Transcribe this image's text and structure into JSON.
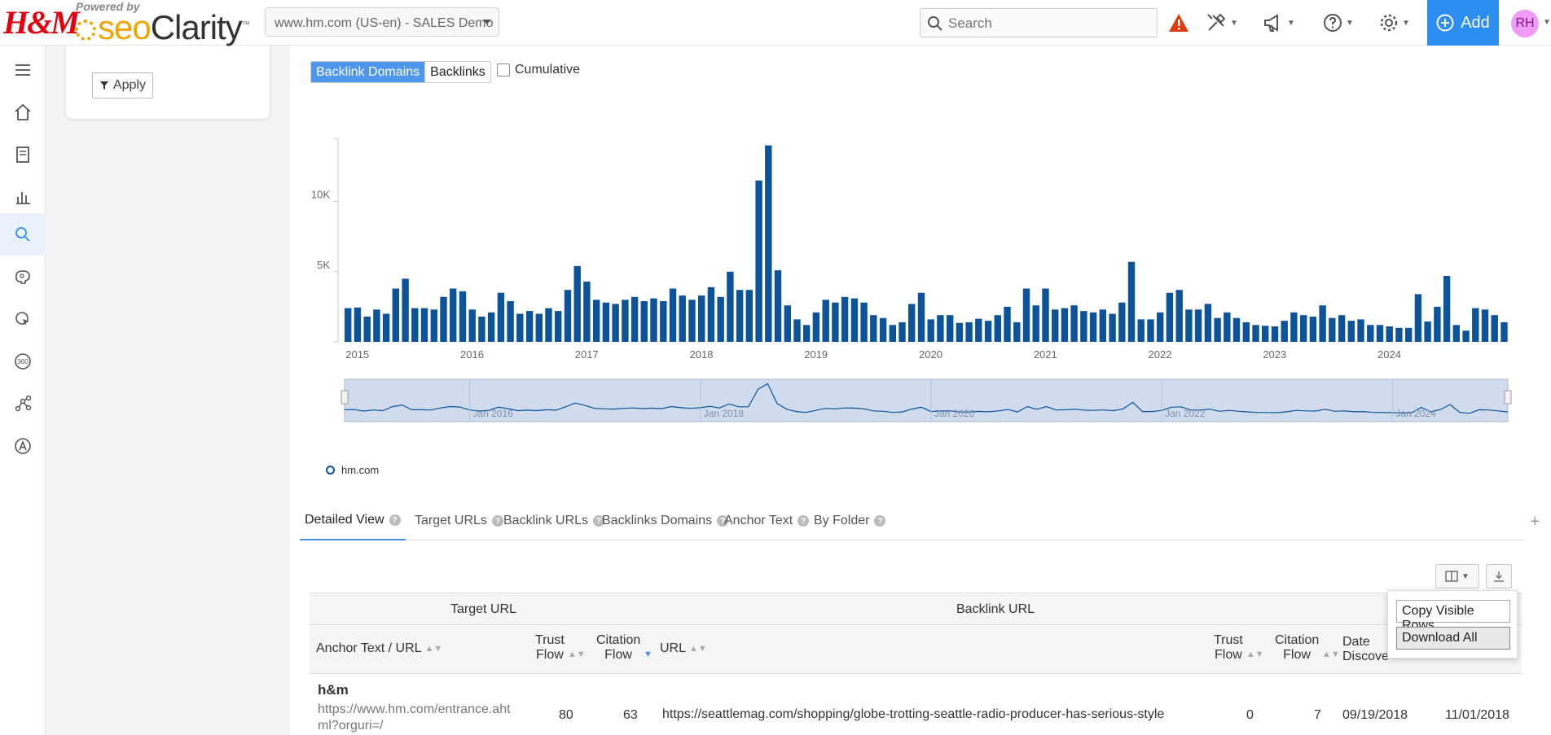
{
  "brand": {
    "hm": "H&M",
    "powered_by": "Powered by",
    "seo": "seo",
    "clarity": "Clarity",
    "tm": "™"
  },
  "site_selector": {
    "value": "www.hm.com (US-en) - SALES Demo"
  },
  "search": {
    "placeholder": "Search"
  },
  "header": {
    "add_label": "Add",
    "avatar_initials": "RH",
    "alert_color": "#e03c10"
  },
  "sidebar": {
    "items": [
      {
        "icon": "menu-icon"
      },
      {
        "icon": "home-icon"
      },
      {
        "icon": "document-icon"
      },
      {
        "icon": "bar-chart-icon"
      },
      {
        "icon": "search-icon",
        "active": true
      },
      {
        "icon": "brain-icon"
      },
      {
        "icon": "cursor-search-icon"
      },
      {
        "icon": "360-icon"
      },
      {
        "icon": "network-icon"
      },
      {
        "icon": "a-circle-icon"
      }
    ]
  },
  "filter_card": {
    "apply_label": "Apply"
  },
  "view_toggle": {
    "options": [
      "Backlink Domains",
      "Backlinks"
    ],
    "selected": "Backlink Domains"
  },
  "cumulative": {
    "label": "Cumulative",
    "checked": false
  },
  "chart_data": {
    "type": "bar",
    "series": [
      {
        "name": "hm.com",
        "color": "#0d5399"
      }
    ],
    "x_labels": [
      "2015",
      "2016",
      "2017",
      "2018",
      "2019",
      "2020",
      "2021",
      "2022",
      "2023",
      "2024"
    ],
    "y_ticks": [
      "5K",
      "10K"
    ],
    "ylim": [
      0,
      14500
    ],
    "values": [
      2400,
      2450,
      1800,
      2300,
      2000,
      3800,
      4500,
      2400,
      2400,
      2300,
      3200,
      3800,
      3600,
      2300,
      1800,
      2100,
      3500,
      2900,
      2000,
      2200,
      2000,
      2400,
      2200,
      3700,
      5400,
      4300,
      3000,
      2800,
      2700,
      3000,
      3200,
      2900,
      3100,
      2900,
      3800,
      3300,
      3000,
      3300,
      3900,
      3200,
      5000,
      3700,
      3700,
      11500,
      14000,
      5100,
      2600,
      1600,
      1200,
      2100,
      3000,
      2800,
      3200,
      3100,
      2800,
      1900,
      1700,
      1200,
      1400,
      2700,
      3500,
      1600,
      1900,
      1900,
      1350,
      1400,
      1650,
      1500,
      1900,
      2500,
      1400,
      3800,
      2600,
      3800,
      2300,
      2400,
      2600,
      2200,
      2100,
      2300,
      2000,
      2800,
      5700,
      1600,
      1600,
      2100,
      3500,
      3700,
      2300,
      2300,
      2700,
      1700,
      2100,
      1700,
      1400,
      1200,
      1150,
      1100,
      1500,
      2100,
      1900,
      1800,
      2600,
      1700,
      1900,
      1500,
      1600,
      1200,
      1200,
      1100,
      1000,
      1000,
      3400,
      1450,
      2500,
      4700,
      1200,
      800,
      2400,
      2300,
      1900,
      1400
    ],
    "navigator_labels": [
      "Jan 2016",
      "Jan 2018",
      "Jan 2020",
      "Jan 2022",
      "Jan 2024"
    ],
    "legend": "hm.com"
  },
  "tabs": [
    {
      "label": "Detailed View",
      "active": true
    },
    {
      "label": "Target URLs"
    },
    {
      "label": "Backlink URLs"
    },
    {
      "label": "Backlinks Domains"
    },
    {
      "label": "Anchor Text"
    },
    {
      "label": "By Folder"
    }
  ],
  "download_menu": {
    "options": [
      "Copy Visible Rows",
      "Download All"
    ],
    "selected": "Download All"
  },
  "table": {
    "group_headers": [
      "Target URL",
      "Backlink URL"
    ],
    "columns": [
      "Anchor Text / URL",
      "Trust Flow",
      "Citation Flow",
      "URL",
      "Trust Flow",
      "Citation Flow",
      "Date Discove"
    ],
    "rows": [
      {
        "anchor_text": "h&m",
        "target_url": "https://www.hm.com/entrance.ahtml?orguri=/",
        "target_trust_flow": "80",
        "target_citation_flow": "63",
        "backlink_url": "https://seattlemag.com/shopping/globe-trotting-seattle-radio-producer-has-serious-style",
        "backlink_trust_flow": "0",
        "backlink_citation_flow": "7",
        "date_discovered": "09/19/2018",
        "last_seen": "11/01/2018"
      }
    ]
  }
}
